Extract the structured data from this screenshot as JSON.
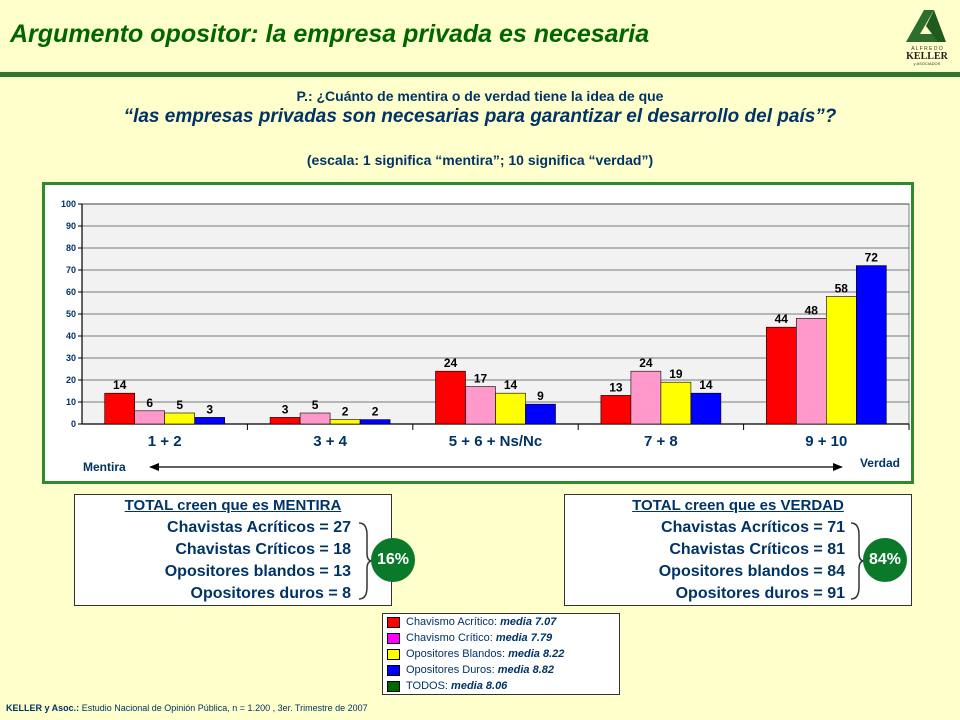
{
  "header": {
    "title": "Argumento opositor: la empresa privada es necesaria",
    "logo_text_top": "A L F R E D O",
    "logo_text_main": "KELLER",
    "logo_text_bottom": "y ASOCIADOS"
  },
  "question": {
    "line1": "P.: ¿Cuánto de mentira o de verdad tiene la idea de que",
    "line2": "“las empresas privadas son necesarias para garantizar el desarrollo del país”?",
    "scale": "(escala: 1 significa “mentira”; 10 significa “verdad”)"
  },
  "chart_data": {
    "type": "bar",
    "categories": [
      "1 + 2",
      "3 + 4",
      "5 + 6 + Ns/Nc",
      "7 + 8",
      "9 + 10"
    ],
    "ylim": [
      0,
      100
    ],
    "yticks": [
      0,
      10,
      20,
      30,
      40,
      50,
      60,
      70,
      80,
      90,
      100
    ],
    "grid": true,
    "series": [
      {
        "name": "Chavismo Acrítico",
        "color": "#ff0000",
        "values": [
          14,
          3,
          24,
          13,
          44
        ]
      },
      {
        "name": "Chavismo Crítico",
        "color": "#ff99cc",
        "values": [
          6,
          5,
          17,
          24,
          48
        ]
      },
      {
        "name": "Opositores Blandos",
        "color": "#ffff00",
        "values": [
          5,
          2,
          14,
          19,
          58
        ]
      },
      {
        "name": "Opositores Duros",
        "color": "#0000ff",
        "values": [
          3,
          2,
          9,
          14,
          72
        ]
      }
    ],
    "axis_left_label": "Mentira",
    "axis_right_label": "Verdad"
  },
  "summary_left": {
    "heading": "TOTAL creen que es MENTIRA",
    "lines": [
      "Chavistas Acríticos = 27",
      "Chavistas Críticos = 18",
      "Opositores blandos = 13",
      "Opositores duros = 8"
    ],
    "total": "16%"
  },
  "summary_right": {
    "heading": "TOTAL creen que es VERDAD",
    "lines": [
      "Chavistas Acríticos = 71",
      "Chavistas Críticos = 81",
      "Opositores blandos = 84",
      "Opositores duros = 91"
    ],
    "total": "84%"
  },
  "legend": [
    {
      "label": "Chavismo Acrítico:",
      "value": "media 7.07",
      "color": "#ff0000"
    },
    {
      "label": "Chavismo Crítico:",
      "value": "media 7.79",
      "color": "#ff00ff"
    },
    {
      "label": "Opositores Blandos:",
      "value": "media 8.22",
      "color": "#ffff00"
    },
    {
      "label": "Opositores Duros:",
      "value": "media 8.82",
      "color": "#0000ff"
    },
    {
      "label": "TODOS:",
      "value": "media 8.06",
      "color": "#006600"
    }
  ],
  "footer": {
    "source_bold": "KELLER y Asoc.:",
    "source_text": "Estudio Nacional de Opinión Pública, n = 1.200 , 3er. Trimestre de 2007"
  }
}
